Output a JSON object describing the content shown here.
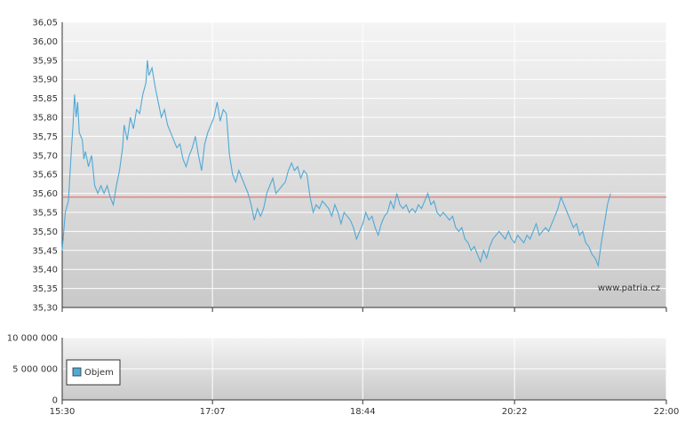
{
  "chart_data": [
    {
      "type": "line",
      "panel": "price",
      "title": "",
      "xlabel": "",
      "ylabel": "",
      "ylim": [
        35.3,
        36.05
      ],
      "y_ticks": [
        "36,05",
        "36,00",
        "35,95",
        "35,90",
        "35,85",
        "35,80",
        "35,75",
        "35,70",
        "35,65",
        "35,60",
        "35,55",
        "35,50",
        "35,45",
        "35,40",
        "35,35",
        "35,30"
      ],
      "x_ticks": [
        "15:30",
        "17:07",
        "18:44",
        "20:22",
        "22:00"
      ],
      "x_range": [
        "15:30",
        "22:00"
      ],
      "grid": true,
      "reference_line": {
        "value": 35.59,
        "color": "#e06060"
      },
      "line_color": "#4fa9d6",
      "watermark": "www.patria.cz",
      "series": [
        {
          "points": [
            [
              "15:30",
              35.45
            ],
            [
              "15:32",
              35.55
            ],
            [
              "15:34",
              35.58
            ],
            [
              "15:36",
              35.72
            ],
            [
              "15:37",
              35.78
            ],
            [
              "15:38",
              35.86
            ],
            [
              "15:39",
              35.8
            ],
            [
              "15:40",
              35.84
            ],
            [
              "15:41",
              35.76
            ],
            [
              "15:43",
              35.74
            ],
            [
              "15:44",
              35.69
            ],
            [
              "15:45",
              35.71
            ],
            [
              "15:47",
              35.67
            ],
            [
              "15:49",
              35.7
            ],
            [
              "15:51",
              35.62
            ],
            [
              "15:53",
              35.6
            ],
            [
              "15:55",
              35.62
            ],
            [
              "15:57",
              35.6
            ],
            [
              "15:59",
              35.62
            ],
            [
              "16:01",
              35.59
            ],
            [
              "16:03",
              35.57
            ],
            [
              "16:05",
              35.62
            ],
            [
              "16:07",
              35.66
            ],
            [
              "16:09",
              35.72
            ],
            [
              "16:10",
              35.78
            ],
            [
              "16:12",
              35.74
            ],
            [
              "16:14",
              35.8
            ],
            [
              "16:16",
              35.77
            ],
            [
              "16:18",
              35.82
            ],
            [
              "16:20",
              35.81
            ],
            [
              "16:22",
              35.86
            ],
            [
              "16:24",
              35.89
            ],
            [
              "16:25",
              35.95
            ],
            [
              "16:26",
              35.91
            ],
            [
              "16:28",
              35.93
            ],
            [
              "16:30",
              35.88
            ],
            [
              "16:32",
              35.84
            ],
            [
              "16:34",
              35.8
            ],
            [
              "16:36",
              35.82
            ],
            [
              "16:38",
              35.78
            ],
            [
              "16:40",
              35.76
            ],
            [
              "16:42",
              35.74
            ],
            [
              "16:44",
              35.72
            ],
            [
              "16:46",
              35.73
            ],
            [
              "16:48",
              35.69
            ],
            [
              "16:50",
              35.67
            ],
            [
              "16:52",
              35.7
            ],
            [
              "16:54",
              35.72
            ],
            [
              "16:56",
              35.75
            ],
            [
              "16:58",
              35.7
            ],
            [
              "17:00",
              35.66
            ],
            [
              "17:02",
              35.73
            ],
            [
              "17:04",
              35.76
            ],
            [
              "17:06",
              35.78
            ],
            [
              "17:08",
              35.8
            ],
            [
              "17:10",
              35.84
            ],
            [
              "17:12",
              35.79
            ],
            [
              "17:14",
              35.82
            ],
            [
              "17:16",
              35.81
            ],
            [
              "17:18",
              35.7
            ],
            [
              "17:20",
              35.65
            ],
            [
              "17:22",
              35.63
            ],
            [
              "17:24",
              35.66
            ],
            [
              "17:26",
              35.64
            ],
            [
              "17:28",
              35.62
            ],
            [
              "17:30",
              35.6
            ],
            [
              "17:32",
              35.57
            ],
            [
              "17:34",
              35.53
            ],
            [
              "17:36",
              35.56
            ],
            [
              "17:38",
              35.54
            ],
            [
              "17:40",
              35.56
            ],
            [
              "17:42",
              35.6
            ],
            [
              "17:44",
              35.62
            ],
            [
              "17:46",
              35.64
            ],
            [
              "17:48",
              35.6
            ],
            [
              "17:50",
              35.61
            ],
            [
              "17:52",
              35.62
            ],
            [
              "17:54",
              35.63
            ],
            [
              "17:56",
              35.66
            ],
            [
              "17:58",
              35.68
            ],
            [
              "18:00",
              35.66
            ],
            [
              "18:02",
              35.67
            ],
            [
              "18:04",
              35.64
            ],
            [
              "18:06",
              35.66
            ],
            [
              "18:08",
              35.65
            ],
            [
              "18:10",
              35.59
            ],
            [
              "18:12",
              35.55
            ],
            [
              "18:14",
              35.57
            ],
            [
              "18:16",
              35.56
            ],
            [
              "18:18",
              35.58
            ],
            [
              "18:20",
              35.57
            ],
            [
              "18:22",
              35.56
            ],
            [
              "18:24",
              35.54
            ],
            [
              "18:26",
              35.57
            ],
            [
              "18:28",
              35.55
            ],
            [
              "18:30",
              35.52
            ],
            [
              "18:32",
              35.55
            ],
            [
              "18:34",
              35.54
            ],
            [
              "18:36",
              35.53
            ],
            [
              "18:38",
              35.51
            ],
            [
              "18:40",
              35.48
            ],
            [
              "18:42",
              35.5
            ],
            [
              "18:44",
              35.52
            ],
            [
              "18:46",
              35.55
            ],
            [
              "18:48",
              35.53
            ],
            [
              "18:50",
              35.54
            ],
            [
              "18:52",
              35.51
            ],
            [
              "18:54",
              35.49
            ],
            [
              "18:56",
              35.52
            ],
            [
              "18:58",
              35.54
            ],
            [
              "19:00",
              35.55
            ],
            [
              "19:02",
              35.58
            ],
            [
              "19:04",
              35.56
            ],
            [
              "19:06",
              35.6
            ],
            [
              "19:08",
              35.57
            ],
            [
              "19:10",
              35.56
            ],
            [
              "19:12",
              35.57
            ],
            [
              "19:14",
              35.55
            ],
            [
              "19:16",
              35.56
            ],
            [
              "19:18",
              35.55
            ],
            [
              "19:20",
              35.57
            ],
            [
              "19:22",
              35.56
            ],
            [
              "19:24",
              35.58
            ],
            [
              "19:26",
              35.6
            ],
            [
              "19:28",
              35.57
            ],
            [
              "19:30",
              35.58
            ],
            [
              "19:32",
              35.55
            ],
            [
              "19:34",
              35.54
            ],
            [
              "19:36",
              35.55
            ],
            [
              "19:38",
              35.54
            ],
            [
              "19:40",
              35.53
            ],
            [
              "19:42",
              35.54
            ],
            [
              "19:44",
              35.51
            ],
            [
              "19:46",
              35.5
            ],
            [
              "19:48",
              35.51
            ],
            [
              "19:50",
              35.48
            ],
            [
              "19:52",
              35.47
            ],
            [
              "19:54",
              35.45
            ],
            [
              "19:56",
              35.46
            ],
            [
              "19:58",
              35.44
            ],
            [
              "20:00",
              35.42
            ],
            [
              "20:02",
              35.45
            ],
            [
              "20:04",
              35.43
            ],
            [
              "20:06",
              35.46
            ],
            [
              "20:08",
              35.48
            ],
            [
              "20:10",
              35.49
            ],
            [
              "20:12",
              35.5
            ],
            [
              "20:14",
              35.49
            ],
            [
              "20:16",
              35.48
            ],
            [
              "20:18",
              35.5
            ],
            [
              "20:20",
              35.48
            ],
            [
              "20:22",
              35.47
            ],
            [
              "20:24",
              35.49
            ],
            [
              "20:26",
              35.48
            ],
            [
              "20:28",
              35.47
            ],
            [
              "20:30",
              35.49
            ],
            [
              "20:32",
              35.48
            ],
            [
              "20:34",
              35.5
            ],
            [
              "20:36",
              35.52
            ],
            [
              "20:38",
              35.49
            ],
            [
              "20:40",
              35.5
            ],
            [
              "20:42",
              35.51
            ],
            [
              "20:44",
              35.5
            ],
            [
              "20:46",
              35.52
            ],
            [
              "20:48",
              35.54
            ],
            [
              "20:50",
              35.56
            ],
            [
              "20:52",
              35.59
            ],
            [
              "20:54",
              35.57
            ],
            [
              "20:56",
              35.55
            ],
            [
              "20:58",
              35.53
            ],
            [
              "21:00",
              35.51
            ],
            [
              "21:02",
              35.52
            ],
            [
              "21:04",
              35.49
            ],
            [
              "21:06",
              35.5
            ],
            [
              "21:08",
              35.47
            ],
            [
              "21:10",
              35.46
            ],
            [
              "21:12",
              35.44
            ],
            [
              "21:14",
              35.43
            ],
            [
              "21:16",
              35.41
            ],
            [
              "21:18",
              35.47
            ],
            [
              "21:20",
              35.52
            ],
            [
              "21:22",
              35.57
            ],
            [
              "21:24",
              35.6
            ]
          ]
        }
      ]
    },
    {
      "type": "bar",
      "panel": "volume",
      "title": "",
      "xlabel": "",
      "ylabel": "",
      "ylim": [
        0,
        10000000
      ],
      "y_ticks": [
        "10 000 000",
        "5 000 000",
        "0"
      ],
      "x_ticks": [
        "15:30",
        "17:07",
        "18:44",
        "20:22",
        "22:00"
      ],
      "grid": true,
      "legend": {
        "position": "bottom-left",
        "entries": [
          {
            "label": "Objem",
            "color": "#4fa9d6"
          }
        ]
      },
      "series": [
        {
          "name": "Objem",
          "values": []
        }
      ]
    }
  ]
}
